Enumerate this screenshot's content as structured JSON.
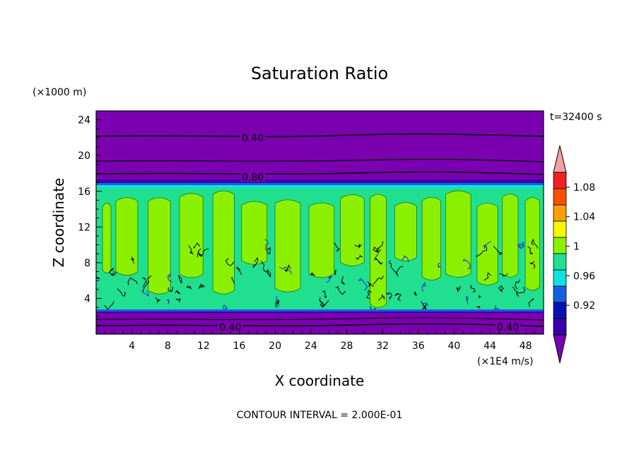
{
  "chart_data": {
    "type": "heatmap",
    "title": "Saturation Ratio",
    "xlabel": "X coordinate",
    "ylabel": "Z coordinate",
    "x_units": "(×1E4 m/s)",
    "y_units": "(×1000 m)",
    "time_label": "t=32400 s",
    "footer": "CONTOUR INTERVAL = 2.000E-01",
    "xlim": [
      0,
      50
    ],
    "ylim": [
      0,
      25
    ],
    "x_ticks": [
      4,
      8,
      12,
      16,
      20,
      24,
      28,
      32,
      36,
      40,
      44,
      48
    ],
    "x_tick_labels": [
      "4",
      "8",
      "12",
      "16",
      "20",
      "24",
      "28",
      "32",
      "36",
      "40",
      "44",
      "48"
    ],
    "y_ticks": [
      4,
      8,
      12,
      16,
      20,
      24
    ],
    "y_tick_labels": [
      "4",
      "8",
      "12",
      "16",
      "20",
      "24"
    ],
    "contour_labels": [
      {
        "text": "0.40",
        "x": 17.5,
        "y": 22.0
      },
      {
        "text": "0.80",
        "x": 17.5,
        "y": 17.6
      },
      {
        "text": "0.40",
        "x": 15.0,
        "y": 0.8
      },
      {
        "text": "0.40",
        "x": 46.0,
        "y": 0.8
      }
    ],
    "colorbar": {
      "levels": [
        0.88,
        0.92,
        0.94,
        0.96,
        0.98,
        1.0,
        1.02,
        1.04,
        1.06,
        1.08,
        1.1
      ],
      "level_labels": [
        "1.08",
        "1.04",
        "1",
        "0.96",
        "0.92"
      ],
      "label_values": [
        1.08,
        1.04,
        1.0,
        0.96,
        0.92
      ],
      "colors": [
        "#7a00b0",
        "#3a00a8",
        "#0a10b0",
        "#1560e0",
        "#10e0e0",
        "#20e090",
        "#8af000",
        "#f8f800",
        "#f8a000",
        "#f85000",
        "#f02020",
        "#f5a0a0"
      ]
    },
    "field_regions": [
      {
        "from_z": 0,
        "to_z": 2.6,
        "value": "below 0.88"
      },
      {
        "from_z": 2.6,
        "to_z": 16.5,
        "value": "0.98 - 1.02"
      },
      {
        "from_z": 16.5,
        "to_z": 25,
        "value": "below 0.88"
      }
    ]
  }
}
